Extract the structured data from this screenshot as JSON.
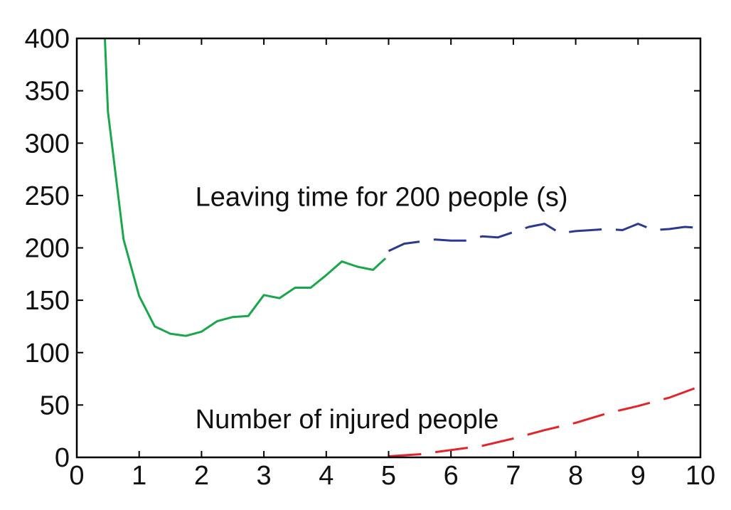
{
  "chart_data": {
    "type": "line",
    "xlim": [
      0,
      10
    ],
    "ylim": [
      0,
      400
    ],
    "xticks": [
      0,
      1,
      2,
      3,
      4,
      5,
      6,
      7,
      8,
      9,
      10
    ],
    "yticks": [
      0,
      50,
      100,
      150,
      200,
      250,
      300,
      350,
      400
    ],
    "grid": false,
    "colors": {
      "green": "#1aa64b",
      "blue": "#2b3990",
      "red": "#e3242b"
    },
    "annotations": [
      {
        "text": "Leaving time for 200 people (s)",
        "x": 1.9,
        "y": 240
      },
      {
        "text": "Number of injured people",
        "x": 1.9,
        "y": 28
      }
    ],
    "series": [
      {
        "style": "solid",
        "color": "green",
        "x": [
          0.45,
          0.5,
          0.75,
          1.0,
          1.25,
          1.5,
          1.75,
          2.0,
          2.25,
          2.5,
          2.75,
          3.0,
          3.25,
          3.5,
          3.75,
          4.0,
          4.25,
          4.5,
          4.75,
          4.95
        ],
        "y": [
          400,
          330,
          208,
          154,
          125,
          118,
          116,
          120,
          130,
          134,
          135,
          155,
          152,
          162,
          162,
          174,
          187,
          182,
          179,
          190
        ]
      },
      {
        "style": "dashed",
        "color": "blue",
        "x": [
          5.0,
          5.25,
          5.5,
          5.75,
          6.0,
          6.25,
          6.5,
          6.75,
          7.0,
          7.25,
          7.5,
          7.75,
          8.0,
          8.25,
          8.5,
          8.75,
          9.0,
          9.25,
          9.5,
          9.75,
          10.0
        ],
        "y": [
          197,
          204,
          206,
          208,
          207,
          207,
          211,
          210,
          215,
          220,
          223,
          214,
          216,
          217,
          218,
          217,
          223,
          217,
          218,
          220,
          219
        ]
      },
      {
        "style": "dashed",
        "color": "red",
        "x": [
          5.0,
          5.5,
          6.0,
          6.5,
          7.0,
          7.5,
          8.0,
          8.5,
          9.0,
          9.5,
          10.0
        ],
        "y": [
          1,
          3,
          7,
          11,
          18,
          26,
          33,
          42,
          49,
          57,
          68
        ]
      }
    ]
  }
}
